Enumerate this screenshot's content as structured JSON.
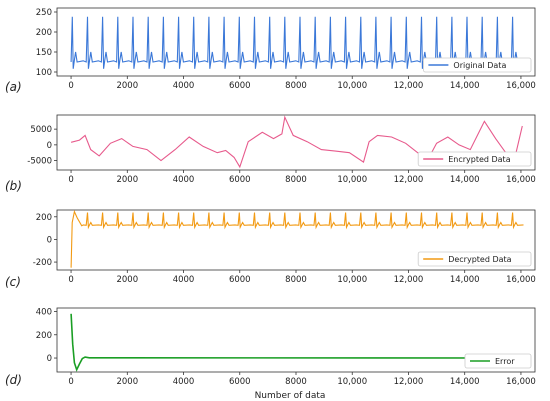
{
  "figure": {
    "xlabel": "Number of data",
    "x_ticks": [
      "0",
      "2000",
      "4000",
      "6000",
      "8000",
      "10,000",
      "12,000",
      "14,000",
      "16,000"
    ]
  },
  "chart_data": [
    {
      "type": "line",
      "panel_label": "(a)",
      "title": "",
      "xlabel": "",
      "ylabel": "",
      "xlim": [
        -500,
        16500
      ],
      "ylim": [
        90,
        260
      ],
      "y_ticks": [
        100,
        150,
        200,
        250
      ],
      "color": "#3b78d8",
      "series": [
        {
          "name": "Original Data",
          "pattern": "periodic_spikes",
          "period": 540,
          "baseline": 125,
          "peak": 238,
          "trough": 108,
          "bump": 150,
          "x_range": [
            0,
            16100
          ]
        }
      ],
      "legend": "bottom-right"
    },
    {
      "type": "line",
      "panel_label": "(b)",
      "title": "",
      "xlabel": "",
      "ylabel": "",
      "xlim": [
        -500,
        16500
      ],
      "ylim": [
        -8000,
        9500
      ],
      "y_ticks": [
        -5000,
        0,
        5000
      ],
      "color": "#e75a8c",
      "series": [
        {
          "name": "Encrypted Data",
          "x": [
            0,
            300,
            500,
            700,
            1000,
            1400,
            1800,
            2200,
            2700,
            3200,
            3700,
            4200,
            4700,
            5200,
            5500,
            5800,
            6000,
            6300,
            6800,
            7200,
            7500,
            7600,
            7900,
            8400,
            8900,
            9400,
            9900,
            10400,
            10600,
            10900,
            11400,
            11900,
            12400,
            12700,
            13000,
            13400,
            13800,
            14200,
            14700,
            15100,
            15500,
            15800,
            16050
          ],
          "y": [
            800,
            1500,
            3000,
            -1500,
            -3500,
            500,
            2000,
            -500,
            -1500,
            -5000,
            -1500,
            2500,
            -500,
            -2500,
            -1800,
            -4000,
            -7000,
            1000,
            4000,
            2000,
            3500,
            8800,
            3000,
            1000,
            -1500,
            -2000,
            -2500,
            -5500,
            1000,
            3000,
            2500,
            500,
            -3000,
            -4500,
            500,
            2500,
            0,
            -1500,
            7500,
            2000,
            -3000,
            -3500,
            6000
          ]
        }
      ],
      "legend": "bottom-right"
    },
    {
      "type": "line",
      "panel_label": "(c)",
      "title": "",
      "xlabel": "",
      "ylabel": "",
      "xlim": [
        -500,
        16500
      ],
      "ylim": [
        -270,
        260
      ],
      "y_ticks": [
        -200,
        0,
        200
      ],
      "color": "#f29a13",
      "series": [
        {
          "name": "Decrypted Data",
          "pattern": "periodic_spikes_with_transient",
          "transient": {
            "x": [
              0,
              40,
              120,
              220,
              380
            ],
            "y": [
              -250,
              150,
              245,
              190,
              120
            ]
          },
          "period": 540,
          "baseline": 125,
          "peak": 238,
          "trough": 108,
          "bump": 150,
          "x_range": [
            0,
            16100
          ]
        }
      ],
      "legend": "bottom-right"
    },
    {
      "type": "line",
      "panel_label": "(d)",
      "title": "",
      "xlabel": "Number of data",
      "ylabel": "",
      "xlim": [
        -500,
        16500
      ],
      "ylim": [
        -120,
        430
      ],
      "y_ticks": [
        0,
        200,
        400
      ],
      "color": "#1a9e24",
      "series": [
        {
          "name": "Error",
          "x": [
            0,
            60,
            120,
            200,
            300,
            400,
            500,
            650,
            16050
          ],
          "y": [
            380,
            120,
            -40,
            -100,
            -50,
            -5,
            8,
            2,
            0
          ]
        }
      ],
      "legend": "bottom-right"
    }
  ]
}
